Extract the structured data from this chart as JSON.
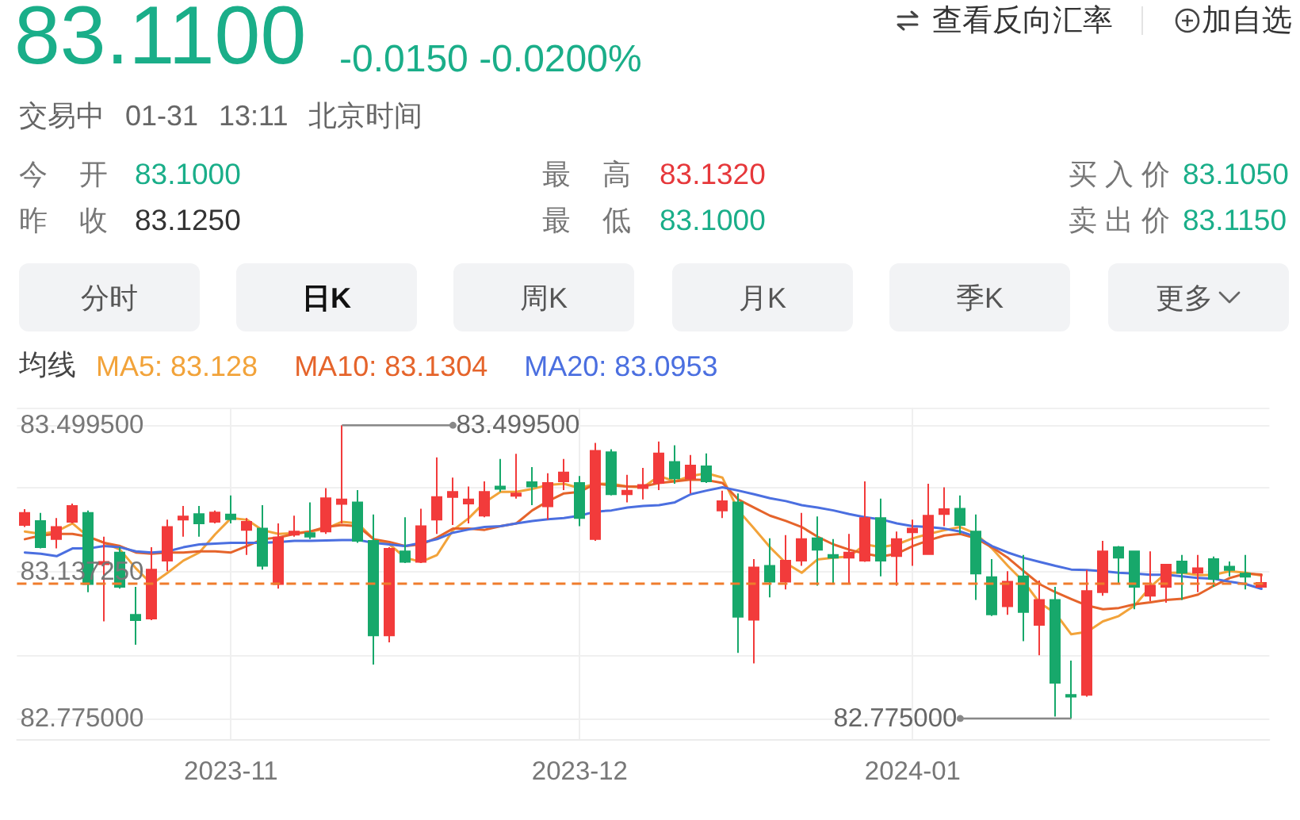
{
  "chart_data": {
    "type": "candlestick",
    "title": "83.1100",
    "subtitle": "-0.0150 -0.0200%",
    "annotations": [
      "交易中 01-31 13:11 北京时间",
      "今开",
      "83.1000",
      "昨收",
      "83.1250",
      "最高",
      "83.1320",
      "最低",
      "83.1000",
      "买入价",
      "83.1050",
      "卖出价",
      "83.1150",
      "分时",
      "日K",
      "周K",
      "月K",
      "季K",
      "更多",
      "查看反向汇率",
      "加自选",
      "83.499500",
      "82.775000"
    ],
    "categories": [
      null,
      null,
      null,
      null,
      null,
      null,
      null,
      null,
      null,
      null,
      null,
      null,
      null,
      "2023-11",
      null,
      null,
      null,
      null,
      null,
      null,
      null,
      null,
      null,
      null,
      null,
      null,
      null,
      null,
      null,
      null,
      null,
      null,
      null,
      null,
      null,
      "2023-12",
      null,
      null,
      null,
      null,
      null,
      null,
      null,
      null,
      null,
      null,
      null,
      null,
      null,
      null,
      null,
      null,
      null,
      null,
      null,
      null,
      "2024-01",
      null,
      null,
      null,
      null,
      null,
      null,
      null,
      null,
      null,
      null,
      null,
      null,
      null,
      null,
      null,
      null,
      null,
      null,
      null,
      null,
      null,
      null
    ],
    "ohlc": [
      [
        83.253,
        83.292,
        83.248,
        83.283
      ],
      [
        83.263,
        83.283,
        83.195,
        83.198
      ],
      [
        83.218,
        83.27,
        83.195,
        83.248
      ],
      [
        83.261,
        83.306,
        83.257,
        83.3
      ],
      [
        83.283,
        83.289,
        83.087,
        83.107
      ],
      [
        83.156,
        83.224,
        83.015,
        83.162
      ],
      [
        83.185,
        83.198,
        83.096,
        83.1
      ],
      [
        83.031,
        83.1,
        82.957,
        83.018
      ],
      [
        83.022,
        83.198,
        83.018,
        83.143
      ],
      [
        83.165,
        83.266,
        83.139,
        83.248
      ],
      [
        83.266,
        83.3,
        83.224,
        83.274
      ],
      [
        83.28,
        83.3,
        83.224,
        83.257
      ],
      [
        83.261,
        83.289,
        83.257,
        83.284
      ],
      [
        83.279,
        83.326,
        83.257,
        83.267
      ],
      [
        83.241,
        83.27,
        83.179,
        83.261
      ],
      [
        83.244,
        83.302,
        83.143,
        83.152
      ],
      [
        83.107,
        83.257,
        83.096,
        83.222
      ],
      [
        83.229,
        83.276,
        83.224,
        83.237
      ],
      [
        83.233,
        83.309,
        83.218,
        83.224
      ],
      [
        83.237,
        83.344,
        83.231,
        83.319
      ],
      [
        83.305,
        83.4995,
        83.257,
        83.316
      ],
      [
        83.309,
        83.339,
        83.209,
        83.214
      ],
      [
        83.214,
        83.279,
        82.908,
        82.98
      ],
      [
        82.98,
        83.198,
        82.963,
        83.194
      ],
      [
        83.188,
        83.272,
        83.159,
        83.162
      ],
      [
        83.162,
        83.293,
        83.159,
        83.25
      ],
      [
        83.266,
        83.42,
        83.231,
        83.322
      ],
      [
        83.322,
        83.37,
        83.253,
        83.335
      ],
      [
        83.306,
        83.348,
        83.257,
        83.316
      ],
      [
        83.276,
        83.361,
        83.272,
        83.335
      ],
      [
        83.348,
        83.416,
        83.335,
        83.342
      ],
      [
        83.325,
        83.429,
        83.318,
        83.331
      ],
      [
        83.359,
        83.396,
        83.302,
        83.348
      ],
      [
        83.299,
        83.381,
        83.266,
        83.357
      ],
      [
        83.361,
        83.416,
        83.339,
        83.383
      ],
      [
        83.357,
        83.374,
        83.25,
        83.27
      ],
      [
        83.218,
        83.456,
        83.214,
        83.436
      ],
      [
        83.433,
        83.44,
        83.326,
        83.329
      ],
      [
        83.329,
        83.377,
        83.309,
        83.338
      ],
      [
        83.344,
        83.394,
        83.316,
        83.352
      ],
      [
        83.357,
        83.459,
        83.339,
        83.43
      ],
      [
        83.409,
        83.45,
        83.355,
        83.368
      ],
      [
        83.368,
        83.426,
        83.331,
        83.4
      ],
      [
        83.398,
        83.43,
        83.357,
        83.361
      ],
      [
        83.289,
        83.338,
        83.27,
        83.312
      ],
      [
        83.309,
        83.331,
        82.937,
        83.026
      ],
      [
        83.019,
        83.169,
        82.911,
        83.148
      ],
      [
        83.152,
        83.22,
        83.074,
        83.113
      ],
      [
        83.113,
        83.228,
        83.094,
        83.165
      ],
      [
        83.165,
        83.283,
        83.152,
        83.218
      ],
      [
        83.22,
        83.274,
        83.103,
        83.192
      ],
      [
        83.179,
        83.218,
        83.107,
        83.172
      ],
      [
        83.172,
        83.231,
        83.107,
        83.185
      ],
      [
        83.165,
        83.361,
        83.162,
        83.27
      ],
      [
        83.27,
        83.318,
        83.126,
        83.165
      ],
      [
        83.176,
        83.237,
        83.103,
        83.218
      ],
      [
        83.235,
        83.266,
        83.152,
        83.244
      ],
      [
        83.181,
        83.355,
        83.179,
        83.276
      ],
      [
        83.28,
        83.346,
        83.25,
        83.292
      ],
      [
        83.293,
        83.326,
        83.231,
        83.253
      ],
      [
        83.237,
        83.279,
        83.068,
        83.133
      ],
      [
        83.124,
        83.169,
        83.028,
        83.032
      ],
      [
        83.052,
        83.139,
        83.031,
        83.113
      ],
      [
        83.126,
        83.179,
        82.966,
        83.038
      ],
      [
        83.006,
        83.116,
        82.931,
        83.068
      ],
      [
        83.068,
        83.1,
        82.78,
        82.863
      ],
      [
        82.833,
        82.918,
        82.775,
        82.829
      ],
      [
        82.833,
        83.142,
        82.829,
        83.09
      ],
      [
        83.087,
        83.214,
        83.078,
        83.188
      ],
      [
        83.198,
        83.201,
        83.107,
        83.172
      ],
      [
        83.188,
        83.188,
        83.045,
        83.1
      ],
      [
        83.078,
        83.188,
        83.065,
        83.103
      ],
      [
        83.1,
        83.155,
        83.061,
        83.155
      ],
      [
        83.163,
        83.179,
        83.068,
        83.135
      ],
      [
        83.135,
        83.179,
        83.087,
        83.146
      ],
      [
        83.169,
        83.175,
        83.1,
        83.12
      ],
      [
        83.15,
        83.163,
        83.126,
        83.142
      ],
      [
        83.133,
        83.179,
        83.094,
        83.125
      ],
      [
        83.1,
        83.132,
        83.1,
        83.11
      ]
    ],
    "colors": [
      "#f23b3b",
      "#17a86b",
      "#f23b3b",
      "#f23b3b",
      "#17a86b",
      "#f23b3b",
      "#17a86b",
      "#17a86b",
      "#f23b3b",
      "#f23b3b",
      "#f23b3b",
      "#17a86b",
      "#f23b3b",
      "#17a86b",
      "#f23b3b",
      "#17a86b",
      "#f23b3b",
      "#f23b3b",
      "#17a86b",
      "#f23b3b",
      "#f23b3b",
      "#17a86b",
      "#17a86b",
      "#f23b3b",
      "#17a86b",
      "#f23b3b",
      "#f23b3b",
      "#f23b3b",
      "#f23b3b",
      "#f23b3b",
      "#17a86b",
      "#f23b3b",
      "#17a86b",
      "#f23b3b",
      "#f23b3b",
      "#17a86b",
      "#f23b3b",
      "#17a86b",
      "#f23b3b",
      "#f23b3b",
      "#f23b3b",
      "#17a86b",
      "#f23b3b",
      "#17a86b",
      "#f23b3b",
      "#17a86b",
      "#f23b3b",
      "#17a86b",
      "#f23b3b",
      "#f23b3b",
      "#17a86b",
      "#17a86b",
      "#f23b3b",
      "#f23b3b",
      "#17a86b",
      "#f23b3b",
      "#f23b3b",
      "#f23b3b",
      "#f23b3b",
      "#17a86b",
      "#17a86b",
      "#17a86b",
      "#f23b3b",
      "#17a86b",
      "#f23b3b",
      "#17a86b",
      "#17a86b",
      "#f23b3b",
      "#f23b3b",
      "#17a86b",
      "#17a86b",
      "#f23b3b",
      "#f23b3b",
      "#17a86b",
      "#f23b3b",
      "#17a86b",
      "#17a86b",
      "#17a86b",
      "#f23b3b"
    ],
    "series": [
      {
        "type": "line",
        "name": "MA5: 83.128",
        "color": "#f2a33a",
        "values": [
          83.237,
          83.231,
          83.237,
          83.257,
          83.224,
          83.209,
          83.192,
          83.146,
          83.107,
          83.135,
          83.165,
          83.185,
          83.23,
          83.27,
          83.266,
          83.24,
          83.231,
          83.233,
          83.237,
          83.244,
          83.261,
          83.257,
          83.218,
          83.205,
          83.172,
          83.162,
          83.179,
          83.24,
          83.27,
          83.309,
          83.335,
          83.335,
          83.342,
          83.352,
          83.355,
          83.344,
          83.355,
          83.355,
          83.348,
          83.346,
          83.374,
          83.361,
          83.374,
          83.381,
          83.37,
          83.289,
          83.244,
          83.198,
          83.159,
          83.135,
          83.168,
          83.172,
          83.175,
          83.205,
          83.198,
          83.205,
          83.22,
          83.231,
          83.24,
          83.248,
          83.231,
          83.195,
          83.152,
          83.113,
          83.061,
          83.035,
          82.983,
          82.989,
          83.015,
          83.028,
          83.054,
          83.1,
          83.135,
          83.135,
          83.129,
          83.13,
          83.139,
          83.135,
          83.128
        ]
      },
      {
        "type": "line",
        "name": "MA10: 83.1304",
        "color": "#e5642b",
        "values": [
          83.218,
          83.227,
          83.231,
          83.231,
          83.224,
          83.209,
          83.201,
          83.185,
          83.182,
          83.185,
          83.185,
          83.188,
          83.188,
          83.185,
          83.201,
          83.218,
          83.222,
          83.231,
          83.237,
          83.248,
          83.253,
          83.25,
          83.218,
          83.211,
          83.201,
          83.205,
          83.222,
          83.244,
          83.244,
          83.241,
          83.25,
          83.257,
          83.289,
          83.312,
          83.331,
          83.335,
          83.355,
          83.351,
          83.348,
          83.348,
          83.357,
          83.361,
          83.365,
          83.364,
          83.357,
          83.316,
          83.296,
          83.276,
          83.263,
          83.248,
          83.224,
          83.205,
          83.192,
          83.182,
          83.175,
          83.182,
          83.201,
          83.215,
          83.227,
          83.231,
          83.22,
          83.198,
          83.172,
          83.139,
          83.107,
          83.087,
          83.07,
          83.054,
          83.045,
          83.048,
          83.057,
          83.062,
          83.068,
          83.071,
          83.081,
          83.103,
          83.122,
          83.133,
          83.1304
        ]
      },
      {
        "type": "line",
        "name": "MA20: 83.0953",
        "color": "#4b6fe0",
        "values": [
          83.185,
          83.182,
          83.176,
          83.195,
          83.195,
          83.201,
          83.198,
          83.188,
          83.185,
          83.188,
          83.198,
          83.205,
          83.207,
          83.209,
          83.209,
          83.209,
          83.211,
          83.214,
          83.214,
          83.215,
          83.216,
          83.216,
          83.209,
          83.205,
          83.201,
          83.209,
          83.218,
          83.234,
          83.242,
          83.248,
          83.25,
          83.257,
          83.263,
          83.267,
          83.27,
          83.276,
          83.286,
          83.289,
          83.296,
          83.3,
          83.302,
          83.309,
          83.329,
          83.338,
          83.346,
          83.338,
          83.329,
          83.319,
          83.312,
          83.302,
          83.296,
          83.289,
          83.28,
          83.272,
          83.267,
          83.257,
          83.25,
          83.248,
          83.244,
          83.237,
          83.224,
          83.201,
          83.185,
          83.172,
          83.162,
          83.152,
          83.143,
          83.142,
          83.139,
          83.135,
          83.133,
          83.13,
          83.13,
          83.126,
          83.122,
          83.12,
          83.113,
          83.107,
          83.0953
        ]
      }
    ],
    "legend_title": "均线",
    "legend": "top left",
    "marker": "none",
    "ylim": [
      82.724,
      83.543
    ],
    "yticks": [
      {
        "value": 82.724,
        "label": null
      },
      {
        "value": 82.775,
        "label": "82.775000"
      },
      {
        "value": 82.932,
        "label": null
      },
      {
        "value": 83.13725,
        "label": "83.137250"
      },
      {
        "value": 83.347,
        "label": null
      },
      {
        "value": 83.4995,
        "label": "83.499500"
      },
      {
        "value": 83.543,
        "label": null
      }
    ],
    "grid": true,
    "ref_lines": [
      {
        "axis": "y",
        "value": 83.11,
        "color": "#f07c2c",
        "line_style": "dashed"
      }
    ]
  }
}
